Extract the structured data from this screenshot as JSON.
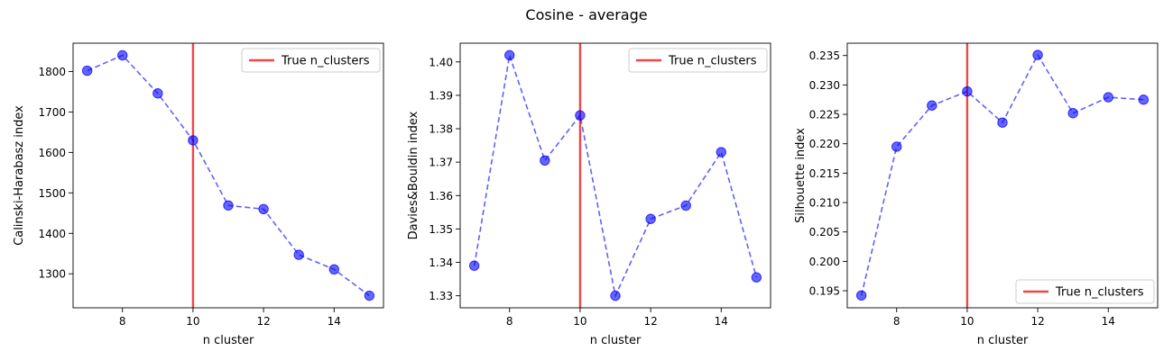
{
  "figure": {
    "title": "Cosine - average"
  },
  "chart_data": [
    {
      "type": "line",
      "xlabel": "n cluster",
      "ylabel": "Calinski-Harabasz index",
      "x": [
        7,
        8,
        9,
        10,
        11,
        12,
        13,
        14,
        15
      ],
      "y": [
        1802,
        1840,
        1746,
        1630,
        1469,
        1460,
        1347,
        1311,
        1246
      ],
      "xlim": [
        6.6,
        15.4
      ],
      "ylim": [
        1216,
        1870
      ],
      "xticks": [
        8,
        10,
        12,
        14
      ],
      "yticks": [
        1300,
        1400,
        1500,
        1600,
        1700,
        1800
      ],
      "vline": {
        "x": 10,
        "label": "True n_clusters",
        "color": "#ef4747"
      },
      "legend": {
        "placement": "top-right",
        "label": "True n_clusters"
      },
      "series_color": "#0000ff",
      "grid": false
    },
    {
      "type": "line",
      "xlabel": "n cluster",
      "ylabel": "Davies&Bouldin index",
      "x": [
        7,
        8,
        9,
        10,
        11,
        12,
        13,
        14,
        15
      ],
      "y": [
        1.339,
        1.402,
        1.3705,
        1.384,
        1.33,
        1.353,
        1.357,
        1.373,
        1.3355
      ],
      "xlim": [
        6.6,
        15.4
      ],
      "ylim": [
        1.3264,
        1.4056
      ],
      "xticks": [
        8,
        10,
        12,
        14
      ],
      "yticks": [
        1.33,
        1.34,
        1.35,
        1.36,
        1.37,
        1.38,
        1.39,
        1.4
      ],
      "ytick_labels": [
        "1.33",
        "1.34",
        "1.35",
        "1.36",
        "1.37",
        "1.38",
        "1.39",
        "1.40"
      ],
      "vline": {
        "x": 10,
        "label": "True n_clusters",
        "color": "#ef4747"
      },
      "legend": {
        "placement": "top-right",
        "label": "True n_clusters"
      },
      "series_color": "#0000ff",
      "grid": false
    },
    {
      "type": "line",
      "xlabel": "n cluster",
      "ylabel": "Silhouette index",
      "x": [
        7,
        8,
        9,
        10,
        11,
        12,
        13,
        14,
        15
      ],
      "y": [
        0.1942,
        0.2195,
        0.2265,
        0.2289,
        0.2236,
        0.2351,
        0.2252,
        0.2279,
        0.2275
      ],
      "xlim": [
        6.6,
        15.4
      ],
      "ylim": [
        0.1921,
        0.2371
      ],
      "xticks": [
        8,
        10,
        12,
        14
      ],
      "yticks": [
        0.195,
        0.2,
        0.205,
        0.21,
        0.215,
        0.22,
        0.225,
        0.23,
        0.235
      ],
      "ytick_labels": [
        "0.195",
        "0.200",
        "0.205",
        "0.210",
        "0.215",
        "0.220",
        "0.225",
        "0.230",
        "0.235"
      ],
      "vline": {
        "x": 10,
        "label": "True n_clusters",
        "color": "#ef4747"
      },
      "legend": {
        "placement": "bottom-right",
        "label": "True n_clusters"
      },
      "series_color": "#0000ff",
      "grid": false
    }
  ]
}
